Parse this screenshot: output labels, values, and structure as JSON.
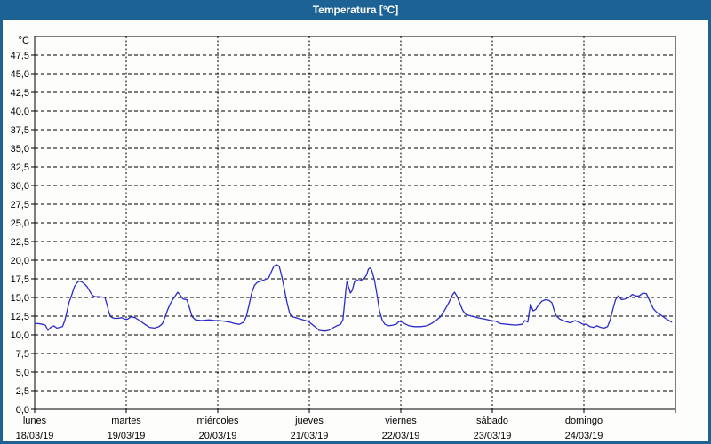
{
  "window": {
    "title": "Temperatura [°C]"
  },
  "colors": {
    "titlebar_bg": "#1d6295",
    "title_text": "#ffffff",
    "content_bg": "#fdfdfb",
    "plot_border": "#000000",
    "grid": "#000000",
    "line": "#2b2bc9",
    "label_text": "#000000"
  },
  "chart_data": {
    "type": "line",
    "title": "Temperatura [°C]",
    "unit_label": "°C",
    "xlabel": "",
    "ylabel": "°C",
    "xlim": [
      0,
      168
    ],
    "ylim": [
      0,
      50
    ],
    "grid": true,
    "legend": "none",
    "y_tick_values": [
      0,
      2.5,
      5,
      7.5,
      10,
      12.5,
      15,
      17.5,
      20,
      22.5,
      25,
      27.5,
      30,
      32.5,
      35,
      37.5,
      40,
      42.5,
      45,
      47.5
    ],
    "y_tick_labels": [
      "0,0",
      "2,5",
      "5,0",
      "7,5",
      "10,0",
      "12,5",
      "15,0",
      "17,5",
      "20,0",
      "22,5",
      "25,0",
      "27,5",
      "30,0",
      "32,5",
      "35,0",
      "37,5",
      "40,0",
      "42,5",
      "45,0",
      "47,5"
    ],
    "days": [
      {
        "name": "lunes",
        "date": "18/03/19"
      },
      {
        "name": "martes",
        "date": "19/03/19"
      },
      {
        "name": "miércoles",
        "date": "20/03/19"
      },
      {
        "name": "jueves",
        "date": "21/03/19"
      },
      {
        "name": "viernes",
        "date": "22/03/19"
      },
      {
        "name": "sábado",
        "date": "23/03/19"
      },
      {
        "name": "domingo",
        "date": "24/03/19"
      }
    ],
    "series": [
      {
        "name": "Temperatura",
        "color": "#2b2bc9",
        "points": [
          [
            0,
            11.5
          ],
          [
            1.0,
            11.5
          ],
          [
            2.0,
            11.4
          ],
          [
            2.8,
            11.3
          ],
          [
            3.5,
            10.6
          ],
          [
            4.2,
            11.0
          ],
          [
            5.0,
            11.2
          ],
          [
            5.8,
            10.9
          ],
          [
            6.6,
            11.0
          ],
          [
            7.3,
            11.1
          ],
          [
            7.9,
            11.9
          ],
          [
            8.4,
            13.0
          ],
          [
            9.0,
            14.3
          ],
          [
            9.7,
            15.3
          ],
          [
            10.4,
            16.4
          ],
          [
            11.0,
            16.9
          ],
          [
            11.6,
            17.2
          ],
          [
            12.3,
            17.1
          ],
          [
            13.1,
            16.8
          ],
          [
            13.8,
            16.4
          ],
          [
            14.5,
            15.8
          ],
          [
            15.1,
            15.3
          ],
          [
            15.8,
            15.1
          ],
          [
            17.0,
            15.1
          ],
          [
            18.4,
            15.0
          ],
          [
            19.0,
            14.0
          ],
          [
            19.5,
            12.9
          ],
          [
            20.0,
            12.4
          ],
          [
            20.8,
            12.2
          ],
          [
            21.8,
            12.2
          ],
          [
            22.8,
            12.3
          ],
          [
            23.6,
            12.1
          ],
          [
            24.4,
            12.1
          ],
          [
            25.2,
            12.4
          ],
          [
            26.3,
            12.3
          ],
          [
            27.5,
            11.9
          ],
          [
            28.9,
            11.4
          ],
          [
            30.1,
            11.0
          ],
          [
            31.4,
            10.9
          ],
          [
            32.6,
            11.1
          ],
          [
            33.5,
            11.5
          ],
          [
            34.2,
            12.4
          ],
          [
            34.9,
            13.4
          ],
          [
            35.8,
            14.4
          ],
          [
            36.7,
            15.1
          ],
          [
            37.5,
            15.7
          ],
          [
            38.2,
            15.3
          ],
          [
            38.9,
            14.8
          ],
          [
            39.9,
            14.7
          ],
          [
            40.6,
            13.6
          ],
          [
            41.3,
            12.4
          ],
          [
            42.2,
            12.0
          ],
          [
            43.7,
            11.9
          ],
          [
            45.7,
            12.0
          ],
          [
            47.3,
            11.9
          ],
          [
            48.5,
            11.9
          ],
          [
            49.8,
            11.8
          ],
          [
            51.2,
            11.7
          ],
          [
            52.4,
            11.5
          ],
          [
            53.7,
            11.4
          ],
          [
            54.8,
            11.7
          ],
          [
            55.5,
            12.5
          ],
          [
            56.2,
            14.0
          ],
          [
            56.9,
            15.6
          ],
          [
            57.6,
            16.6
          ],
          [
            58.3,
            17.0
          ],
          [
            59.3,
            17.2
          ],
          [
            60.4,
            17.4
          ],
          [
            61.3,
            17.6
          ],
          [
            62.0,
            18.4
          ],
          [
            62.7,
            19.2
          ],
          [
            63.4,
            19.4
          ],
          [
            64.1,
            19.2
          ],
          [
            64.8,
            17.8
          ],
          [
            65.5,
            16.0
          ],
          [
            66.2,
            14.2
          ],
          [
            66.9,
            12.8
          ],
          [
            67.6,
            12.4
          ],
          [
            69.0,
            12.2
          ],
          [
            70.4,
            12.0
          ],
          [
            71.7,
            11.8
          ],
          [
            72.7,
            11.4
          ],
          [
            73.7,
            11.0
          ],
          [
            74.6,
            10.6
          ],
          [
            76.0,
            10.5
          ],
          [
            77.1,
            10.6
          ],
          [
            78.1,
            10.9
          ],
          [
            79.2,
            11.2
          ],
          [
            80.2,
            11.4
          ],
          [
            80.8,
            12.0
          ],
          [
            81.2,
            14.0
          ],
          [
            81.6,
            16.1
          ],
          [
            81.9,
            17.2
          ],
          [
            82.3,
            16.4
          ],
          [
            82.8,
            15.6
          ],
          [
            83.3,
            16.0
          ],
          [
            83.8,
            17.0
          ],
          [
            84.3,
            17.4
          ],
          [
            84.9,
            17.2
          ],
          [
            85.5,
            17.3
          ],
          [
            86.3,
            17.5
          ],
          [
            87.0,
            18.0
          ],
          [
            87.5,
            18.8
          ],
          [
            88.1,
            19.0
          ],
          [
            88.6,
            18.3
          ],
          [
            89.1,
            17.3
          ],
          [
            89.7,
            15.5
          ],
          [
            90.4,
            13.2
          ],
          [
            91.1,
            12.0
          ],
          [
            91.8,
            11.4
          ],
          [
            92.8,
            11.2
          ],
          [
            93.9,
            11.3
          ],
          [
            94.8,
            11.4
          ],
          [
            95.5,
            11.8
          ],
          [
            96.3,
            11.7
          ],
          [
            97.0,
            11.5
          ],
          [
            98.2,
            11.2
          ],
          [
            99.6,
            11.1
          ],
          [
            101.2,
            11.1
          ],
          [
            102.8,
            11.2
          ],
          [
            104.0,
            11.5
          ],
          [
            105.2,
            11.9
          ],
          [
            106.4,
            12.4
          ],
          [
            107.5,
            13.3
          ],
          [
            108.7,
            14.4
          ],
          [
            109.6,
            15.4
          ],
          [
            110.1,
            15.7
          ],
          [
            110.8,
            15.1
          ],
          [
            111.5,
            14.2
          ],
          [
            112.2,
            13.3
          ],
          [
            113.1,
            12.7
          ],
          [
            114.5,
            12.5
          ],
          [
            116.1,
            12.3
          ],
          [
            118.0,
            12.1
          ],
          [
            119.8,
            11.9
          ],
          [
            121.0,
            11.8
          ],
          [
            122.1,
            11.5
          ],
          [
            123.8,
            11.4
          ],
          [
            126.1,
            11.3
          ],
          [
            127.8,
            11.4
          ],
          [
            128.5,
            11.9
          ],
          [
            129.3,
            11.7
          ],
          [
            130.0,
            14.1
          ],
          [
            130.7,
            13.2
          ],
          [
            131.4,
            13.4
          ],
          [
            132.1,
            14.0
          ],
          [
            133.0,
            14.5
          ],
          [
            133.9,
            14.7
          ],
          [
            134.9,
            14.6
          ],
          [
            135.6,
            14.3
          ],
          [
            136.2,
            13.3
          ],
          [
            136.8,
            12.5
          ],
          [
            137.7,
            12.1
          ],
          [
            139.1,
            11.8
          ],
          [
            140.5,
            11.6
          ],
          [
            141.7,
            11.9
          ],
          [
            142.6,
            11.7
          ],
          [
            143.8,
            11.4
          ],
          [
            144.7,
            11.4
          ],
          [
            145.6,
            11.1
          ],
          [
            146.5,
            11.0
          ],
          [
            147.4,
            11.2
          ],
          [
            148.4,
            11.0
          ],
          [
            149.3,
            10.9
          ],
          [
            150.2,
            11.1
          ],
          [
            150.9,
            12.0
          ],
          [
            151.6,
            13.4
          ],
          [
            152.3,
            14.7
          ],
          [
            153.0,
            15.2
          ],
          [
            153.9,
            14.7
          ],
          [
            154.8,
            14.8
          ],
          [
            155.8,
            15.0
          ],
          [
            156.7,
            15.4
          ],
          [
            157.6,
            15.2
          ],
          [
            158.5,
            15.2
          ],
          [
            159.5,
            15.6
          ],
          [
            160.4,
            15.5
          ],
          [
            161.3,
            14.5
          ],
          [
            162.2,
            13.5
          ],
          [
            163.1,
            13.0
          ],
          [
            164.3,
            12.6
          ],
          [
            165.4,
            12.2
          ],
          [
            166.3,
            11.9
          ],
          [
            167.0,
            11.7
          ]
        ]
      }
    ]
  }
}
